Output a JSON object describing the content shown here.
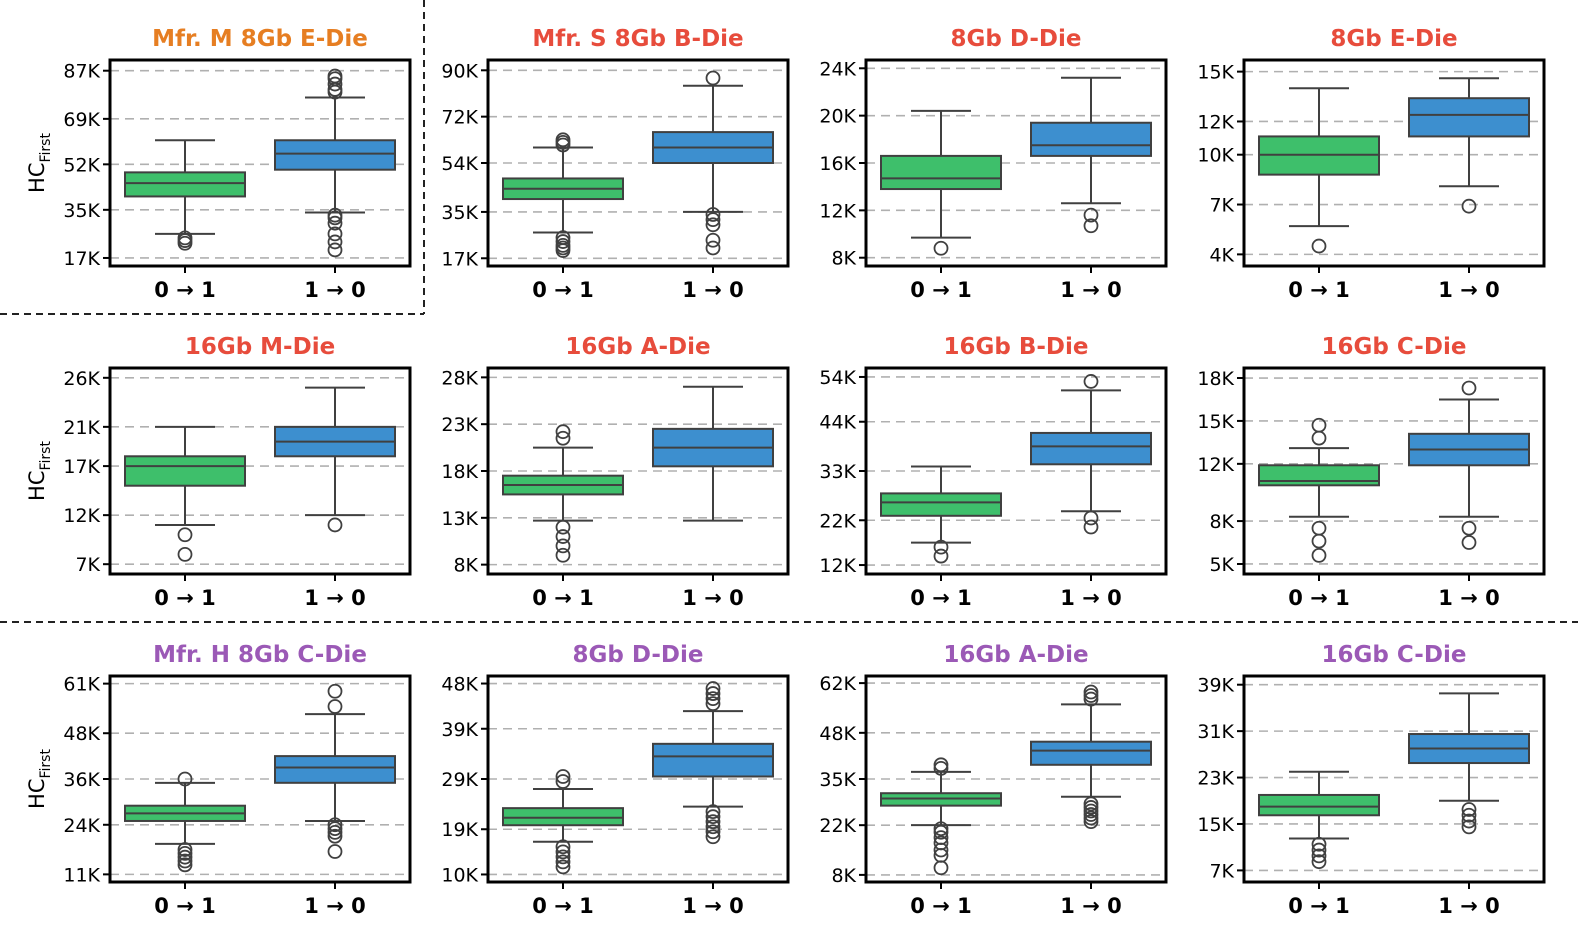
{
  "colors": {
    "mfr_m": "#e67e22",
    "mfr_s": "#e74c3c",
    "mfr_h": "#9b59b6",
    "box_0to1": "#3ebf6b",
    "box_1to0": "#3d8fcf",
    "box_edge": "#404040",
    "grid": "#b0b0b0"
  },
  "ylabel": {
    "main": "HC",
    "sub": "First"
  },
  "chart_data": [
    {
      "type": "box",
      "title": "Mfr. M 8Gb E-Die",
      "title_color": "mfr_m",
      "categories": [
        "0 → 1",
        "1 → 0"
      ],
      "ylim": [
        14000,
        91000
      ],
      "yticks": [
        17000,
        35000,
        52000,
        69000,
        87000
      ],
      "yticklabels": [
        "17K",
        "35K",
        "52K",
        "69K",
        "87K"
      ],
      "grid": "y dashed",
      "boxes": [
        {
          "q1": 40000,
          "median": 45000,
          "q3": 49000,
          "whislo": 26000,
          "whishi": 61000,
          "fliers": [
            22500,
            23500,
            24500
          ]
        },
        {
          "q1": 50000,
          "median": 56000,
          "q3": 61000,
          "whislo": 34000,
          "whishi": 77000,
          "fliers": [
            20000,
            23000,
            26000,
            30000,
            32000,
            33000,
            79000,
            80000,
            82000,
            84000,
            85000
          ]
        }
      ]
    },
    {
      "type": "box",
      "title": "Mfr. S 8Gb B-Die",
      "title_color": "mfr_s",
      "categories": [
        "0 → 1",
        "1 → 0"
      ],
      "ylim": [
        14000,
        94000
      ],
      "yticks": [
        17000,
        35000,
        54000,
        72000,
        90000
      ],
      "yticklabels": [
        "17K",
        "35K",
        "54K",
        "72K",
        "90K"
      ],
      "grid": "y dashed",
      "boxes": [
        {
          "q1": 40000,
          "median": 44000,
          "q3": 48000,
          "whislo": 27000,
          "whishi": 60000,
          "fliers": [
            20000,
            21000,
            22000,
            23500,
            25000,
            61000,
            62000,
            63000
          ]
        },
        {
          "q1": 54000,
          "median": 60000,
          "q3": 66000,
          "whislo": 35000,
          "whishi": 84000,
          "fliers": [
            21000,
            24000,
            30000,
            32000,
            34000,
            87000
          ]
        }
      ]
    },
    {
      "type": "box",
      "title": "8Gb D-Die",
      "title_color": "mfr_s",
      "categories": [
        "0 → 1",
        "1 → 0"
      ],
      "ylim": [
        7300,
        24700
      ],
      "yticks": [
        8000,
        12000,
        16000,
        20000,
        24000
      ],
      "yticklabels": [
        "8K",
        "12K",
        "16K",
        "20K",
        "24K"
      ],
      "grid": "y dashed",
      "boxes": [
        {
          "q1": 13800,
          "median": 14700,
          "q3": 16600,
          "whislo": 9700,
          "whishi": 20400,
          "fliers": [
            8800
          ]
        },
        {
          "q1": 16600,
          "median": 17500,
          "q3": 19400,
          "whislo": 12600,
          "whishi": 23200,
          "fliers": [
            10700,
            11600
          ]
        }
      ]
    },
    {
      "type": "box",
      "title": "8Gb E-Die",
      "title_color": "mfr_s",
      "categories": [
        "0 → 1",
        "1 → 0"
      ],
      "ylim": [
        3300,
        15700
      ],
      "yticks": [
        4000,
        7000,
        10000,
        12000,
        15000
      ],
      "yticklabels": [
        "4K",
        "7K",
        "10K",
        "12K",
        "15K"
      ],
      "grid": "y dashed",
      "boxes": [
        {
          "q1": 8800,
          "median": 10000,
          "q3": 11100,
          "whislo": 5700,
          "whishi": 14000,
          "fliers": [
            4500
          ]
        },
        {
          "q1": 11100,
          "median": 12400,
          "q3": 13400,
          "whislo": 8100,
          "whishi": 14600,
          "fliers": [
            6900
          ]
        }
      ]
    },
    {
      "type": "box",
      "title": "16Gb M-Die",
      "title_color": "mfr_s",
      "categories": [
        "0 → 1",
        "1 → 0"
      ],
      "ylim": [
        6000,
        27000
      ],
      "yticks": [
        7000,
        12000,
        17000,
        21000,
        26000
      ],
      "yticklabels": [
        "7K",
        "12K",
        "17K",
        "21K",
        "26K"
      ],
      "grid": "y dashed",
      "boxes": [
        {
          "q1": 15000,
          "median": 17000,
          "q3": 18000,
          "whislo": 11000,
          "whishi": 21000,
          "fliers": [
            8000,
            10000
          ]
        },
        {
          "q1": 18000,
          "median": 19500,
          "q3": 21000,
          "whislo": 12000,
          "whishi": 25000,
          "fliers": [
            11000
          ]
        }
      ]
    },
    {
      "type": "box",
      "title": "16Gb A-Die",
      "title_color": "mfr_s",
      "categories": [
        "0 → 1",
        "1 → 0"
      ],
      "ylim": [
        7000,
        29000
      ],
      "yticks": [
        8000,
        13000,
        18000,
        23000,
        28000
      ],
      "yticklabels": [
        "8K",
        "13K",
        "18K",
        "23K",
        "28K"
      ],
      "grid": "y dashed",
      "boxes": [
        {
          "q1": 15500,
          "median": 16500,
          "q3": 17500,
          "whislo": 12700,
          "whishi": 20500,
          "fliers": [
            9000,
            10000,
            11000,
            12000,
            21500,
            22200
          ]
        },
        {
          "q1": 18500,
          "median": 20500,
          "q3": 22500,
          "whislo": 12700,
          "whishi": 27000,
          "fliers": []
        }
      ]
    },
    {
      "type": "box",
      "title": "16Gb B-Die",
      "title_color": "mfr_s",
      "categories": [
        "0 → 1",
        "1 → 0"
      ],
      "ylim": [
        10000,
        56000
      ],
      "yticks": [
        12000,
        22000,
        33000,
        44000,
        54000
      ],
      "yticklabels": [
        "12K",
        "22K",
        "33K",
        "44K",
        "54K"
      ],
      "grid": "y dashed",
      "boxes": [
        {
          "q1": 23000,
          "median": 26000,
          "q3": 28000,
          "whislo": 17000,
          "whishi": 34000,
          "fliers": [
            14000,
            16000
          ]
        },
        {
          "q1": 34500,
          "median": 38500,
          "q3": 41500,
          "whislo": 24000,
          "whishi": 51000,
          "fliers": [
            20500,
            22500,
            53000
          ]
        }
      ]
    },
    {
      "type": "box",
      "title": "16Gb C-Die",
      "title_color": "mfr_s",
      "categories": [
        "0 → 1",
        "1 → 0"
      ],
      "ylim": [
        4300,
        18700
      ],
      "yticks": [
        5000,
        8000,
        12000,
        15000,
        18000
      ],
      "yticklabels": [
        "5K",
        "8K",
        "12K",
        "15K",
        "18K"
      ],
      "grid": "y dashed",
      "boxes": [
        {
          "q1": 10500,
          "median": 10800,
          "q3": 11900,
          "whislo": 8300,
          "whishi": 13100,
          "fliers": [
            5600,
            6600,
            7500,
            13800,
            14700
          ]
        },
        {
          "q1": 11900,
          "median": 13000,
          "q3": 14100,
          "whislo": 8300,
          "whishi": 16500,
          "fliers": [
            6500,
            7500,
            17300
          ]
        }
      ]
    },
    {
      "type": "box",
      "title": "Mfr. H 8Gb C-Die",
      "title_color": "mfr_h",
      "categories": [
        "0 → 1",
        "1 → 0"
      ],
      "ylim": [
        9000,
        63000
      ],
      "yticks": [
        11000,
        24000,
        36000,
        48000,
        61000
      ],
      "yticklabels": [
        "11K",
        "24K",
        "36K",
        "48K",
        "61K"
      ],
      "grid": "y dashed",
      "boxes": [
        {
          "q1": 25000,
          "median": 27000,
          "q3": 29000,
          "whislo": 19000,
          "whishi": 35000,
          "fliers": [
            13500,
            14500,
            15500,
            16500,
            17500,
            36000
          ]
        },
        {
          "q1": 35000,
          "median": 39000,
          "q3": 42000,
          "whislo": 25000,
          "whishi": 53000,
          "fliers": [
            17000,
            21000,
            22000,
            23000,
            24000,
            55000,
            59000
          ]
        }
      ]
    },
    {
      "type": "box",
      "title": "8Gb D-Die",
      "title_color": "mfr_h",
      "categories": [
        "0 → 1",
        "1 → 0"
      ],
      "ylim": [
        8500,
        49500
      ],
      "yticks": [
        10000,
        19000,
        29000,
        39000,
        48000
      ],
      "yticklabels": [
        "10K",
        "19K",
        "29K",
        "39K",
        "48K"
      ],
      "grid": "y dashed",
      "boxes": [
        {
          "q1": 19800,
          "median": 21300,
          "q3": 23200,
          "whislo": 16500,
          "whishi": 27000,
          "fliers": [
            11500,
            12500,
            13500,
            14500,
            15500,
            28500,
            29500
          ]
        },
        {
          "q1": 29500,
          "median": 33500,
          "q3": 36000,
          "whislo": 23500,
          "whishi": 42500,
          "fliers": [
            17500,
            18500,
            19500,
            20500,
            21500,
            22500,
            44000,
            45000,
            46000,
            47000
          ]
        }
      ]
    },
    {
      "type": "box",
      "title": "16Gb A-Die",
      "title_color": "mfr_h",
      "categories": [
        "0 → 1",
        "1 → 0"
      ],
      "ylim": [
        6000,
        64000
      ],
      "yticks": [
        8000,
        22000,
        35000,
        48000,
        62000
      ],
      "yticklabels": [
        "8K",
        "22K",
        "35K",
        "48K",
        "62K"
      ],
      "grid": "y dashed",
      "boxes": [
        {
          "q1": 27500,
          "median": 29500,
          "q3": 31000,
          "whislo": 22000,
          "whishi": 37000,
          "fliers": [
            10000,
            13500,
            15000,
            17000,
            18500,
            20000,
            21000,
            38000,
            39000
          ]
        },
        {
          "q1": 39000,
          "median": 43000,
          "q3": 45500,
          "whislo": 30000,
          "whishi": 56000,
          "fliers": [
            23000,
            24000,
            25000,
            26000,
            27000,
            28000,
            57500,
            58500,
            59500
          ]
        }
      ]
    },
    {
      "type": "box",
      "title": "16Gb C-Die",
      "title_color": "mfr_h",
      "categories": [
        "0 → 1",
        "1 → 0"
      ],
      "ylim": [
        5000,
        40500
      ],
      "yticks": [
        7000,
        15000,
        23000,
        31000,
        39000
      ],
      "yticklabels": [
        "7K",
        "15K",
        "23K",
        "31K",
        "39K"
      ],
      "grid": "y dashed",
      "boxes": [
        {
          "q1": 16500,
          "median": 18000,
          "q3": 20000,
          "whislo": 12500,
          "whishi": 24000,
          "fliers": [
            8500,
            9500,
            10500,
            11500
          ]
        },
        {
          "q1": 25500,
          "median": 28000,
          "q3": 30500,
          "whislo": 19000,
          "whishi": 37500,
          "fliers": [
            14500,
            15500,
            16500,
            17500
          ]
        }
      ]
    }
  ]
}
